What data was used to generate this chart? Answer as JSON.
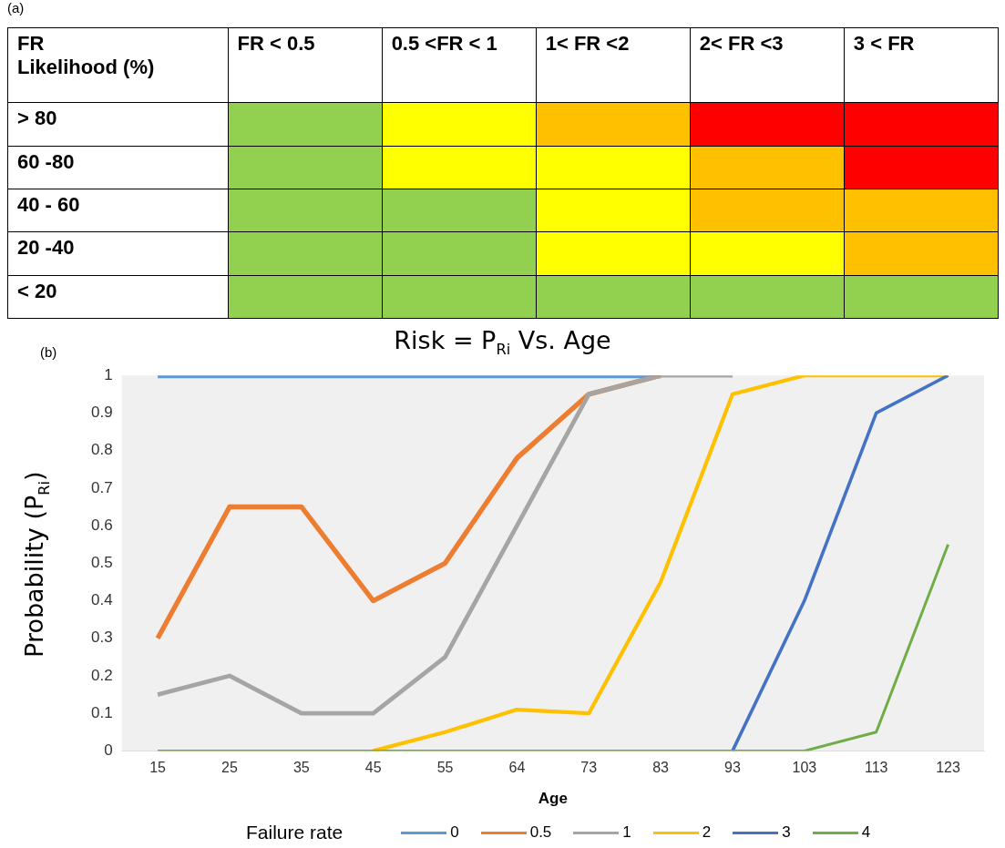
{
  "chart_data": [
    {
      "type": "other",
      "title": "(a)",
      "annotations": [
        "FR\nLikelihood (%)",
        "FR < 0.5",
        "0.5 <FR < 1",
        "1< FR <2",
        "2< FR <3",
        "3 < FR",
        "> 80",
        "60 -80",
        "40 - 60",
        "20 -40",
        "< 20"
      ],
      "colors": [
        "#92d050",
        "#ffff00",
        "#ffc000",
        "#ff0000",
        "#ff0000",
        "#92d050",
        "#ffff00",
        "#ffff00",
        "#ffc000",
        "#ff0000",
        "#92d050",
        "#92d050",
        "#ffff00",
        "#ffc000",
        "#ffc000",
        "#92d050",
        "#92d050",
        "#ffff00",
        "#ffff00",
        "#ffc000",
        "#92d050",
        "#92d050",
        "#92d050",
        "#92d050",
        "#92d050"
      ]
    },
    {
      "type": "line",
      "title": "Risk = P$_{Ri}$ Vs. Age",
      "annotations": [
        "(b)"
      ],
      "xlabel": "Age",
      "ylabel": "Probability (P$_{Ri}$)",
      "legend_title": "Failure rate",
      "legend": "bottom",
      "categories": [
        "15",
        "25",
        "35",
        "45",
        "55",
        "64",
        "73",
        "83",
        "93",
        "103",
        "113",
        "123"
      ],
      "ylim": [
        0,
        1
      ],
      "yticks": [
        0,
        0.1,
        0.2,
        0.3,
        0.4,
        0.5,
        0.6,
        0.7,
        0.8,
        0.9,
        1
      ],
      "series": [
        {
          "name": "0",
          "color": "#5b9bd5",
          "values": [
            1,
            1,
            1,
            1,
            1,
            1,
            1,
            1,
            null,
            null,
            null,
            null
          ]
        },
        {
          "name": "0.5",
          "color": "#ed7d31",
          "values": [
            0.3,
            0.65,
            0.65,
            0.4,
            0.5,
            0.78,
            0.95,
            1,
            null,
            null,
            null,
            null
          ]
        },
        {
          "name": "1",
          "color": "#a5a5a5",
          "values": [
            0.15,
            0.2,
            0.1,
            0.1,
            0.25,
            0.6,
            0.95,
            1,
            1,
            null,
            null,
            null
          ]
        },
        {
          "name": "2",
          "color": "#ffc000",
          "values": [
            null,
            null,
            null,
            0,
            0.05,
            0.11,
            0.1,
            0.45,
            0.95,
            1,
            1,
            1
          ]
        },
        {
          "name": "3",
          "color": "#4472c4",
          "values": [
            null,
            null,
            null,
            null,
            null,
            null,
            null,
            null,
            0,
            0.4,
            0.9,
            1
          ]
        },
        {
          "name": "4",
          "color": "#70ad47",
          "values": [
            0,
            0,
            0,
            0,
            0,
            0,
            0,
            0,
            0,
            0,
            0.05,
            0.55
          ]
        }
      ]
    }
  ]
}
